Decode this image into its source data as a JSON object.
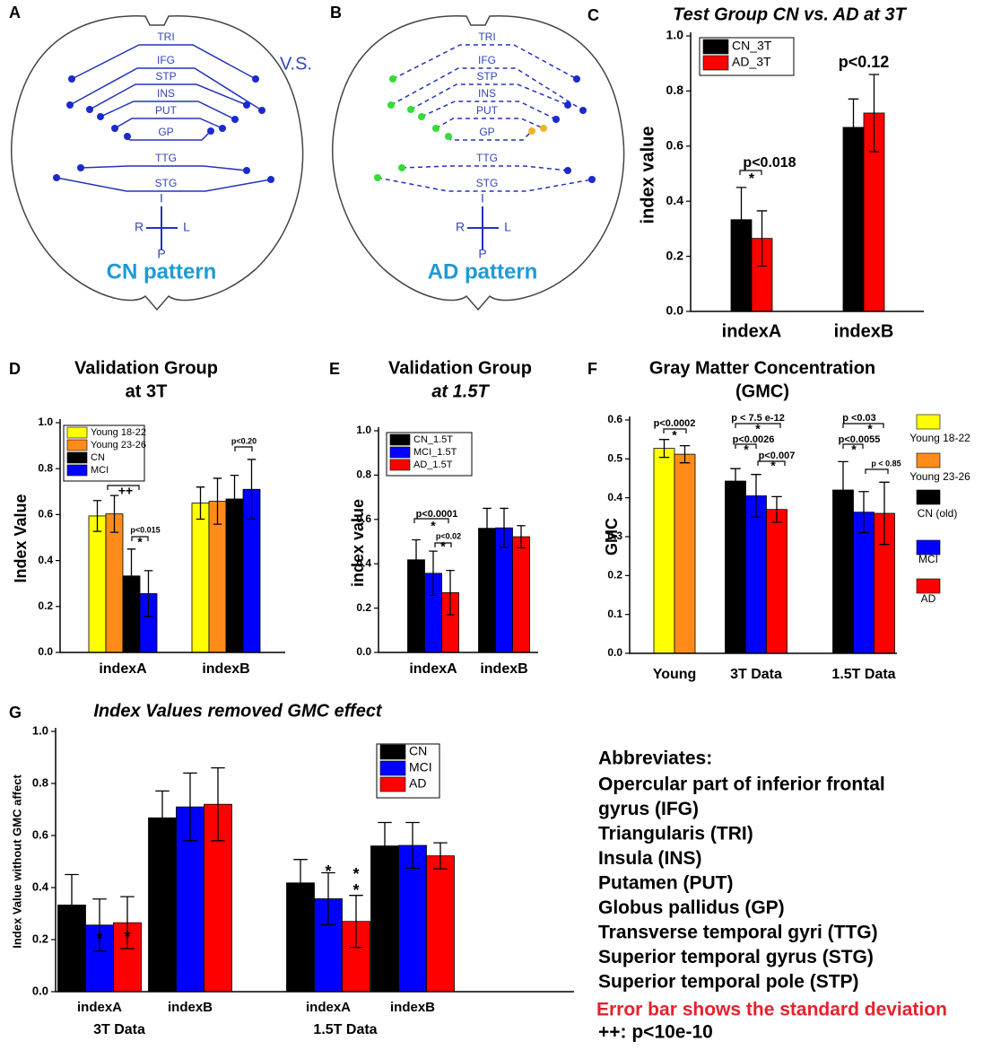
{
  "diagrams": [
    {
      "panel": "A",
      "labels": [
        "TRI",
        "IFG",
        "STP",
        "INS",
        "PUT",
        "GP",
        "TTG",
        "STG"
      ],
      "axes": [
        "I",
        "R",
        "L",
        "P"
      ],
      "caption": "CN pattern",
      "note": "V.S."
    },
    {
      "panel": "B",
      "labels": [
        "TRI",
        "IFG",
        "STP",
        "INS",
        "PUT",
        "GP",
        "TTG",
        "STG"
      ],
      "axes": [
        "I",
        "R",
        "L",
        "P"
      ],
      "caption": "AD pattern"
    }
  ],
  "chart_data": [
    {
      "type": "bar",
      "panel": "C",
      "title": "Test Group CN vs. AD at 3T",
      "y_label": "index value",
      "categories": [
        "indexA",
        "indexB"
      ],
      "series": [
        {
          "name": "CN_3T",
          "color": "#000000",
          "values": [
            0.333,
            0.668
          ],
          "errors": [
            0.117,
            0.103
          ]
        },
        {
          "name": "AD_3T",
          "color": "#ff0000",
          "values": [
            0.265,
            0.72
          ],
          "errors": [
            0.1,
            0.14
          ]
        }
      ],
      "ylim": [
        0,
        1.0
      ],
      "yticks": [
        {
          "value": 0,
          "label": "0.0"
        },
        0.2,
        0.4,
        0.6,
        0.8,
        {
          "value": 1.0,
          "label": "1.0"
        }
      ],
      "annotations": [
        "p<0.018",
        "*",
        "p<0.12"
      ]
    },
    {
      "type": "bar",
      "panel": "D",
      "title": "Validation Group",
      "subtitle": "at 3T",
      "y_label": "Index Value",
      "categories": [
        "indexA",
        "indexB"
      ],
      "series": [
        {
          "name": "Young 18-22",
          "color": "#ffff00",
          "values": [
            0.594,
            0.65
          ],
          "errors": [
            0.067,
            0.07
          ]
        },
        {
          "name": "Young 23-26",
          "color": "#ff8c1a",
          "values": [
            0.603,
            0.658
          ],
          "errors": [
            0.08,
            0.1
          ]
        },
        {
          "name": "CN",
          "color": "#000000",
          "values": [
            0.333,
            0.668
          ],
          "errors": [
            0.117,
            0.103
          ]
        },
        {
          "name": "MCI",
          "color": "#0000ff",
          "values": [
            0.256,
            0.71
          ],
          "errors": [
            0.1,
            0.13
          ]
        }
      ],
      "ylim": [
        0,
        1.0
      ],
      "yticks": [
        {
          "value": 0,
          "label": "0.0"
        },
        0.2,
        0.4,
        0.6,
        0.8,
        {
          "value": 1.0,
          "label": "1.0"
        }
      ],
      "annotations": [
        "++",
        "p<0.015",
        "*",
        "p<0.20"
      ]
    },
    {
      "type": "bar",
      "panel": "E",
      "title": "Validation Group",
      "subtitle": "at 1.5T",
      "y_label": "index value",
      "categories": [
        "indexA",
        "indexB"
      ],
      "series": [
        {
          "name": "CN_1.5T",
          "color": "#000000",
          "values": [
            0.418,
            0.56
          ],
          "errors": [
            0.09,
            0.09
          ]
        },
        {
          "name": "MCI_1.5T",
          "color": "#0000ff",
          "values": [
            0.357,
            0.562
          ],
          "errors": [
            0.1,
            0.088
          ]
        },
        {
          "name": "AD_1.5T",
          "color": "#ff0000",
          "values": [
            0.27,
            0.522
          ],
          "errors": [
            0.1,
            0.05
          ]
        }
      ],
      "ylim": [
        0,
        1.0
      ],
      "yticks": [
        {
          "value": 0,
          "label": "0.0"
        },
        0.2,
        0.4,
        0.6,
        0.8,
        {
          "value": 1.0,
          "label": "1.0"
        }
      ],
      "annotations": [
        "p<0.0001",
        "*",
        "p<0.02",
        "*"
      ]
    },
    {
      "type": "bar",
      "panel": "F",
      "title": "Gray Matter Concentration",
      "subtitle": "(GMC)",
      "y_label": "GMC",
      "categories": [
        "Young",
        "3T Data",
        "1.5T Data"
      ],
      "series": [
        {
          "name": "Young 18-22",
          "color": "#ffff00",
          "values": [
            0.527,
            null,
            null
          ],
          "errors": [
            0.023,
            null,
            null
          ]
        },
        {
          "name": "Young 23-26",
          "color": "#ff8c1a",
          "values": [
            0.512,
            null,
            null
          ],
          "errors": [
            0.022,
            null,
            null
          ]
        },
        {
          "name": "CN (old)",
          "color": "#000000",
          "values": [
            null,
            0.443,
            0.42
          ],
          "errors": [
            null,
            0.032,
            0.073
          ]
        },
        {
          "name": "MCI",
          "color": "#0000ff",
          "values": [
            null,
            0.405,
            0.363
          ],
          "errors": [
            null,
            0.055,
            0.053
          ]
        },
        {
          "name": "AD",
          "color": "#ff0000",
          "values": [
            null,
            0.37,
            0.36
          ],
          "errors": [
            null,
            0.033,
            0.08
          ]
        }
      ],
      "ylim": [
        0,
        0.6
      ],
      "yticks": [
        {
          "value": 0,
          "label": "0.0"
        },
        0.1,
        0.2,
        0.3,
        0.4,
        0.5,
        0.6
      ],
      "annotations": [
        "p<0.0002",
        "*",
        "p < 7.5 e-12",
        "*",
        "p<0.0026",
        "*",
        "p<0.007",
        "*",
        "p <0.03",
        "*",
        "p<0.0055",
        "*",
        "p < 0.85"
      ]
    },
    {
      "type": "bar",
      "panel": "G",
      "title": "Index Values removed GMC effect",
      "y_label": "Index Value without GMC affect",
      "categories": [
        "indexA",
        "indexB",
        "indexA",
        "indexB"
      ],
      "groups": [
        "3T Data",
        "1.5T Data"
      ],
      "series": [
        {
          "name": "CN",
          "color": "#000000",
          "values": [
            0.333,
            0.668,
            0.418,
            0.56
          ],
          "errors": [
            0.117,
            0.103,
            0.09,
            0.09
          ]
        },
        {
          "name": "MCI",
          "color": "#0000ff",
          "values": [
            0.256,
            0.71,
            0.357,
            0.562
          ],
          "errors": [
            0.1,
            0.13,
            0.1,
            0.088
          ]
        },
        {
          "name": "AD",
          "color": "#ff0000",
          "values": [
            0.265,
            0.72,
            0.27,
            0.522
          ],
          "errors": [
            0.1,
            0.14,
            0.1,
            0.05
          ]
        }
      ],
      "ylim": [
        0,
        1.0
      ],
      "yticks": [
        {
          "value": 0,
          "label": "0.0"
        },
        0.2,
        0.4,
        0.6,
        0.8,
        {
          "value": 1.0,
          "label": "1.0"
        }
      ],
      "annotations": [
        "*",
        "*",
        "*",
        "*",
        "*"
      ]
    }
  ],
  "abbreviations": {
    "heading": "Abbreviates:",
    "lines": [
      "Opercular part of inferior frontal",
      "gyrus (IFG)",
      "Triangularis (TRI)",
      "Insula (INS)",
      "Putamen (PUT)",
      "Globus pallidus (GP)",
      "Transverse temporal gyri (TTG)",
      "Superior temporal gyrus (STG)",
      "Superior temporal pole (STP)"
    ],
    "note": "Error bar shows the standard deviation",
    "footnote": "++: p<10e-10"
  }
}
